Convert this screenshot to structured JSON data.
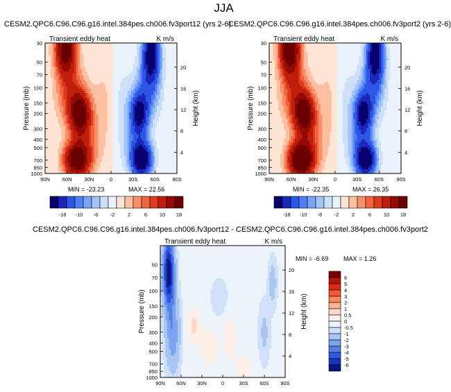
{
  "season": "JJA",
  "chart_data": [
    {
      "type": "heatmap",
      "title": "CESM2.QPC6.C96.C96.g16.intel.384pes.ch006.fv3port12 (yrs 2-6)",
      "subtitle_left": "Transient eddy heat",
      "subtitle_right": "K m/s",
      "xlabel": "",
      "ylabel": "Pressure (mb)",
      "ylabel_right": "Height (km)",
      "x_ticks": [
        "90N",
        "60N",
        "30N",
        "0",
        "30S",
        "60S",
        "90S"
      ],
      "x_range": [
        90,
        -90
      ],
      "y_ticks": [
        30,
        50,
        70,
        100,
        150,
        200,
        300,
        400,
        500,
        700,
        850,
        1000
      ],
      "y_range": [
        1000,
        30
      ],
      "height_ticks": [
        20,
        16,
        12,
        8,
        4
      ],
      "min_label": "MIN = -23.23",
      "max_label": "MAX = 22.56",
      "features": [
        {
          "lat": 62,
          "p": 40,
          "value": 22
        },
        {
          "lat": 40,
          "p": 200,
          "value": 20
        },
        {
          "lat": 45,
          "p": 750,
          "value": 22
        },
        {
          "lat": -55,
          "p": 40,
          "value": -22
        },
        {
          "lat": -40,
          "p": 200,
          "value": -18
        },
        {
          "lat": -42,
          "p": 750,
          "value": -23
        }
      ]
    },
    {
      "type": "heatmap",
      "title": "CESM2.QPC6.C96.C96.g16.intel.384pes.ch006.fv3port2 (yrs 2-6)",
      "subtitle_left": "Transient eddy heat",
      "subtitle_right": "K m/s",
      "xlabel": "",
      "ylabel": "Pressure (mb)",
      "ylabel_right": "Height (km)",
      "x_ticks": [
        "90N",
        "60N",
        "30N",
        "0",
        "30S",
        "60S",
        "90S"
      ],
      "x_range": [
        90,
        -90
      ],
      "y_ticks": [
        30,
        50,
        70,
        100,
        150,
        200,
        300,
        400,
        500,
        700,
        850,
        1000
      ],
      "y_range": [
        1000,
        30
      ],
      "height_ticks": [
        20,
        16,
        12,
        8,
        4
      ],
      "min_label": "MIN = -22.35",
      "max_label": "MAX = 26.35",
      "features": [
        {
          "lat": 62,
          "p": 40,
          "value": 24
        },
        {
          "lat": 40,
          "p": 200,
          "value": 20
        },
        {
          "lat": 45,
          "p": 750,
          "value": 26
        },
        {
          "lat": -55,
          "p": 40,
          "value": -22
        },
        {
          "lat": -40,
          "p": 200,
          "value": -18
        },
        {
          "lat": -42,
          "p": 750,
          "value": -22
        }
      ]
    },
    {
      "type": "heatmap",
      "title": "CESM2.QPC6.C96.C96.g16.intel.384pes.ch006.fv3port12 - CESM2.QPC6.C96.C96.g16.intel.384pes.ch006.fv3port2",
      "subtitle_left": "Transient eddy heat",
      "subtitle_right": "K m/s",
      "xlabel": "",
      "ylabel": "Pressure (mb)",
      "ylabel_right": "Height (km)",
      "x_ticks": [
        "90N",
        "60N",
        "30N",
        "0",
        "30S",
        "60S",
        "90S"
      ],
      "x_range": [
        90,
        -90
      ],
      "y_ticks": [
        50,
        70,
        100,
        150,
        200,
        300,
        400,
        500,
        700,
        850,
        1000
      ],
      "y_range": [
        1000,
        30
      ],
      "height_ticks": [
        20,
        16,
        12,
        8,
        4
      ],
      "min_label": "MIN = -6.69",
      "max_label": "MAX = 1.26",
      "features": [
        {
          "lat": 75,
          "p": 60,
          "value": -6.5
        },
        {
          "lat": 40,
          "p": 250,
          "value": 1.0
        },
        {
          "lat": -10,
          "p": 400,
          "value": 0.8
        },
        {
          "lat": -60,
          "p": 300,
          "value": -0.8
        },
        {
          "lat": -70,
          "p": 80,
          "value": -1.2
        }
      ]
    }
  ],
  "colorbars": {
    "main": {
      "labels": [
        "-18",
        "-10",
        "-6",
        "-2",
        "2",
        "6",
        "10",
        "18"
      ],
      "colors": [
        "#08006e",
        "#1a27b8",
        "#2d56e6",
        "#4f7ff5",
        "#7aa4f7",
        "#a4c3f7",
        "#cde0f8",
        "#eaf2fb",
        "#fde4d4",
        "#fcbfa0",
        "#f8906a",
        "#f06540",
        "#dd3b1d",
        "#c01e0c",
        "#950a05",
        "#6b0000"
      ]
    },
    "diff": {
      "labels": [
        "6",
        "5",
        "4",
        "3",
        "2",
        "1",
        "0.5",
        "0",
        "-0.5",
        "-1",
        "-2",
        "-3",
        "-4",
        "-5",
        "-6"
      ],
      "colors": [
        "#7a0000",
        "#b5140a",
        "#e02a15",
        "#f25a35",
        "#f8885e",
        "#fbb393",
        "#fdd8c5",
        "#fcefe8",
        "#edf3fb",
        "#cfe0f8",
        "#a9c5f2",
        "#7ea4ee",
        "#5580ea",
        "#2f59e0",
        "#1a33b8",
        "#0b1482"
      ]
    }
  }
}
